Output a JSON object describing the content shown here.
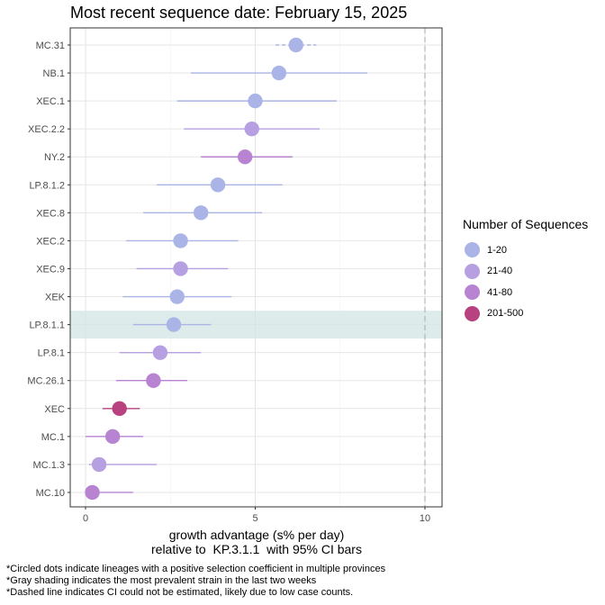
{
  "title": "Most recent sequence date: February 15, 2025",
  "legend": {
    "title": "Number of Sequences",
    "items": [
      {
        "label": "1-20",
        "color": "#aab4e6"
      },
      {
        "label": "21-40",
        "color": "#b6a0e2"
      },
      {
        "label": "41-80",
        "color": "#b884d2"
      },
      {
        "label": "201-500",
        "color": "#b8417f"
      }
    ]
  },
  "xlabel_line1": "growth advantage (s% per day)",
  "xlabel_line2": "relative to  KP.3.1.1  with 95% CI bars",
  "footnotes": [
    "*Circled dots indicate lineages with a positive selection coefficient in multiple provinces",
    "*Gray shading indicates the most prevalent strain in the last two weeks",
    "*Dashed line indicates CI could not be estimated, likely due to low case counts."
  ],
  "chart_data": {
    "type": "scatter",
    "title": "Most recent sequence date: February 15, 2025",
    "xlabel": "growth advantage (s% per day) relative to  KP.3.1.1  with 95% CI bars",
    "xlim": [
      -0.45,
      10.5
    ],
    "xticks": [
      0,
      5,
      10
    ],
    "reference_line_x": 10,
    "grid": true,
    "legend_position": "right",
    "highlighted_lineage": "LP.8.1.1",
    "points": [
      {
        "lineage": "MC.31",
        "value": 6.2,
        "ci_low": 5.6,
        "ci_high": 6.8,
        "group": "1-20",
        "ci_dashed": true
      },
      {
        "lineage": "NB.1",
        "value": 5.7,
        "ci_low": 3.1,
        "ci_high": 8.3,
        "group": "1-20",
        "ci_dashed": false
      },
      {
        "lineage": "XEC.1",
        "value": 5.0,
        "ci_low": 2.7,
        "ci_high": 7.4,
        "group": "1-20",
        "ci_dashed": false
      },
      {
        "lineage": "XEC.2.2",
        "value": 4.9,
        "ci_low": 2.9,
        "ci_high": 6.9,
        "group": "21-40",
        "ci_dashed": false
      },
      {
        "lineage": "NY.2",
        "value": 4.7,
        "ci_low": 3.4,
        "ci_high": 6.1,
        "group": "41-80",
        "ci_dashed": false
      },
      {
        "lineage": "LP.8.1.2",
        "value": 3.9,
        "ci_low": 2.1,
        "ci_high": 5.8,
        "group": "1-20",
        "ci_dashed": false
      },
      {
        "lineage": "XEC.8",
        "value": 3.4,
        "ci_low": 1.7,
        "ci_high": 5.2,
        "group": "1-20",
        "ci_dashed": false
      },
      {
        "lineage": "XEC.2",
        "value": 2.8,
        "ci_low": 1.2,
        "ci_high": 4.5,
        "group": "1-20",
        "ci_dashed": false
      },
      {
        "lineage": "XEC.9",
        "value": 2.8,
        "ci_low": 1.5,
        "ci_high": 4.2,
        "group": "21-40",
        "ci_dashed": false
      },
      {
        "lineage": "XEK",
        "value": 2.7,
        "ci_low": 1.1,
        "ci_high": 4.3,
        "group": "1-20",
        "ci_dashed": false
      },
      {
        "lineage": "LP.8.1.1",
        "value": 2.6,
        "ci_low": 1.4,
        "ci_high": 3.7,
        "group": "1-20",
        "ci_dashed": false
      },
      {
        "lineage": "LP.8.1",
        "value": 2.2,
        "ci_low": 1.0,
        "ci_high": 3.4,
        "group": "21-40",
        "ci_dashed": false
      },
      {
        "lineage": "MC.26.1",
        "value": 2.0,
        "ci_low": 0.9,
        "ci_high": 3.0,
        "group": "41-80",
        "ci_dashed": false
      },
      {
        "lineage": "XEC",
        "value": 1.0,
        "ci_low": 0.5,
        "ci_high": 1.6,
        "group": "201-500",
        "ci_dashed": false
      },
      {
        "lineage": "MC.1",
        "value": 0.8,
        "ci_low": 0.0,
        "ci_high": 1.7,
        "group": "41-80",
        "ci_dashed": false
      },
      {
        "lineage": "MC.1.3",
        "value": 0.4,
        "ci_low": 0.1,
        "ci_high": 2.1,
        "group": "21-40",
        "ci_dashed": false
      },
      {
        "lineage": "MC.10",
        "value": 0.2,
        "ci_low": 0.0,
        "ci_high": 1.4,
        "group": "41-80",
        "ci_dashed": false
      }
    ]
  }
}
